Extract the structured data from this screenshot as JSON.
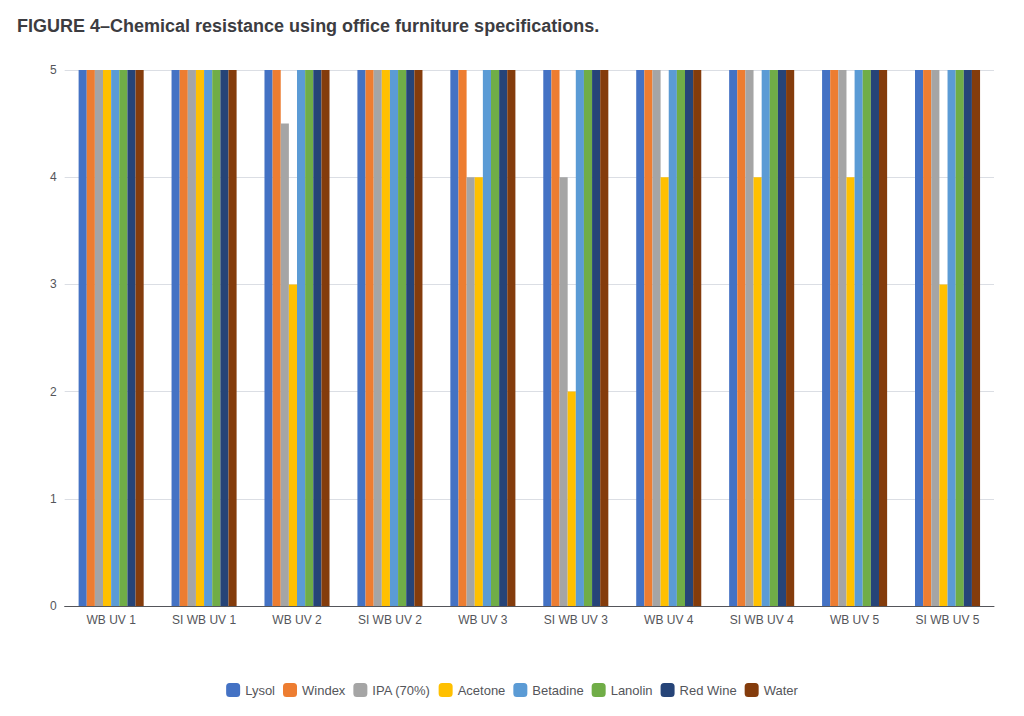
{
  "chart_data": {
    "type": "bar",
    "title": "FIGURE 4–Chemical resistance using office furniture specifications.",
    "categories": [
      "WB UV 1",
      "SI WB UV 1",
      "WB UV 2",
      "SI WB UV 2",
      "WB UV 3",
      "SI WB UV 3",
      "WB UV 4",
      "SI WB UV 4",
      "WB UV 5",
      "SI WB UV 5"
    ],
    "series": [
      {
        "name": "Lysol",
        "color": "#4472C4",
        "values": [
          5,
          5,
          5,
          5,
          5,
          5,
          5,
          5,
          5,
          5
        ]
      },
      {
        "name": "Windex",
        "color": "#ED7D31",
        "values": [
          5,
          5,
          5,
          5,
          5,
          5,
          5,
          5,
          5,
          5
        ]
      },
      {
        "name": "IPA (70%)",
        "color": "#A5A5A5",
        "values": [
          5,
          5,
          4.5,
          5,
          4,
          4,
          5,
          5,
          5,
          5
        ]
      },
      {
        "name": "Acetone",
        "color": "#FFC000",
        "values": [
          5,
          5,
          3,
          5,
          4,
          2,
          4,
          4,
          4,
          3
        ]
      },
      {
        "name": "Betadine",
        "color": "#5B9BD5",
        "values": [
          5,
          5,
          5,
          5,
          5,
          5,
          5,
          5,
          5,
          5
        ]
      },
      {
        "name": "Lanolin",
        "color": "#70AD47",
        "values": [
          5,
          5,
          5,
          5,
          5,
          5,
          5,
          5,
          5,
          5
        ]
      },
      {
        "name": "Red Wine",
        "color": "#264478",
        "values": [
          5,
          5,
          5,
          5,
          5,
          5,
          5,
          5,
          5,
          5
        ]
      },
      {
        "name": "Water",
        "color": "#843C0C",
        "values": [
          5,
          5,
          5,
          5,
          5,
          5,
          5,
          5,
          5,
          5
        ]
      }
    ],
    "ylim": [
      0,
      5
    ],
    "yticks": [
      0,
      1,
      2,
      3,
      4,
      5
    ],
    "grid": true,
    "legend": "bottom"
  }
}
